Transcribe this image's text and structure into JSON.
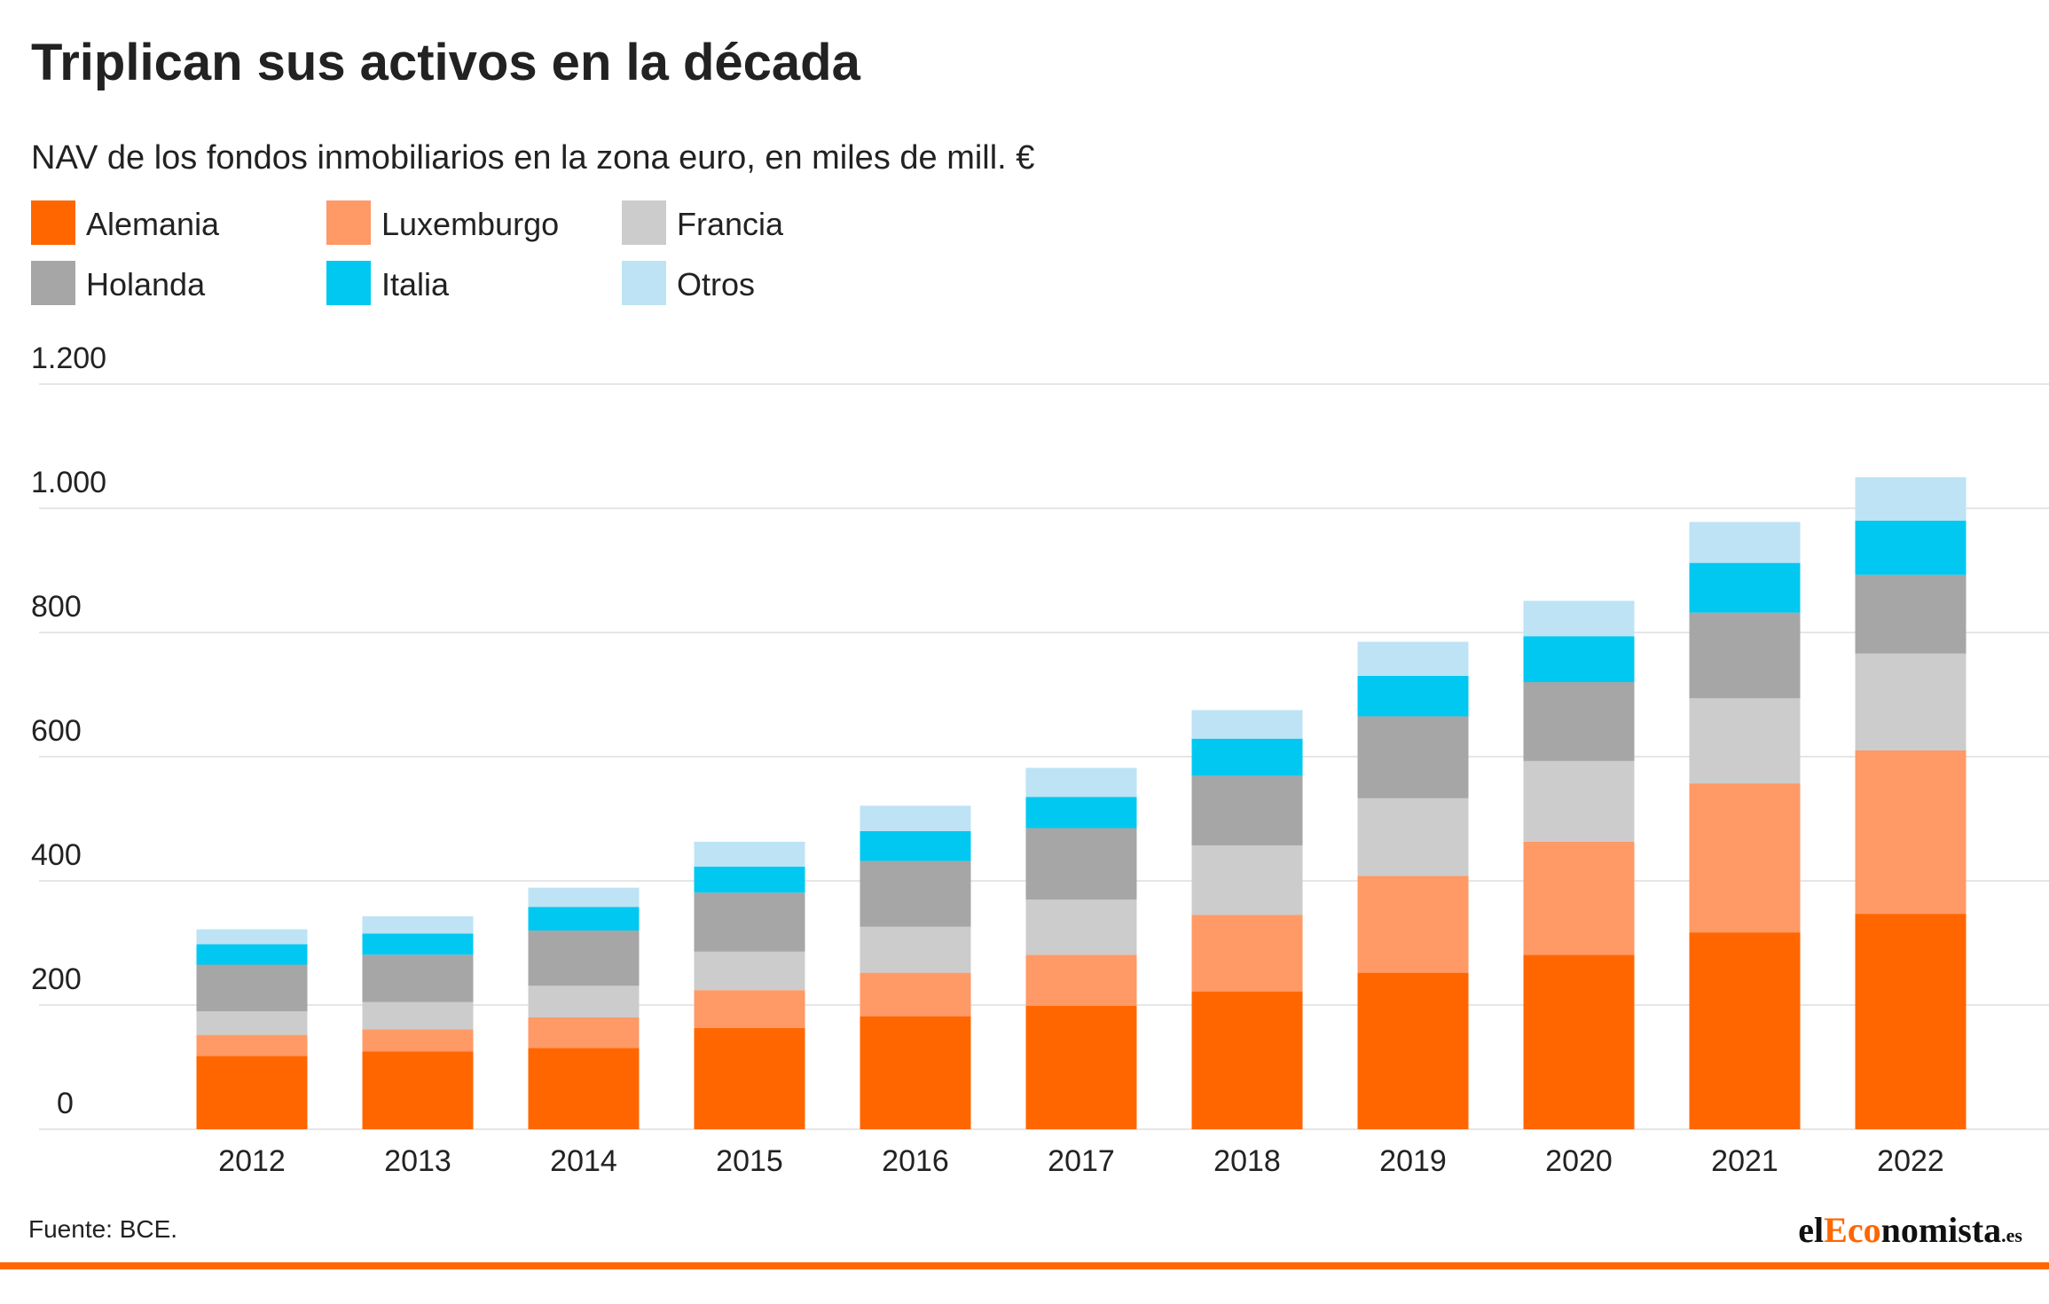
{
  "chart_data": {
    "type": "stacked-bar",
    "title": "Triplican sus activos en la década",
    "subtitle": "NAV de los fondos inmobiliarios en la zona euro, en miles de mill. €",
    "source": "Fuente: BCE.",
    "categories": [
      "2012",
      "2013",
      "2014",
      "2015",
      "2016",
      "2017",
      "2018",
      "2019",
      "2020",
      "2021",
      "2022"
    ],
    "series": [
      {
        "name": "Alemania",
        "color": "#ff6600",
        "values": [
          118,
          125,
          131,
          163,
          182,
          199,
          222,
          252,
          281,
          317,
          347
        ]
      },
      {
        "name": "Luxemburgo",
        "color": "#ff9966",
        "values": [
          34,
          36,
          49,
          61,
          70,
          82,
          123,
          156,
          182,
          240,
          263
        ]
      },
      {
        "name": "Francia",
        "color": "#cccccc",
        "values": [
          38,
          44,
          51,
          62,
          74,
          89,
          112,
          125,
          130,
          137,
          156
        ]
      },
      {
        "name": "Holanda",
        "color": "#a6a6a6",
        "values": [
          75,
          76,
          89,
          95,
          106,
          115,
          112,
          132,
          127,
          138,
          127
        ]
      },
      {
        "name": "Italia",
        "color": "#00c8f0",
        "values": [
          33,
          34,
          38,
          42,
          48,
          50,
          60,
          65,
          74,
          80,
          87
        ]
      },
      {
        "name": "Otros",
        "color": "#bde3f5",
        "values": [
          24,
          28,
          31,
          40,
          41,
          47,
          46,
          55,
          57,
          66,
          70
        ]
      }
    ],
    "ylim": [
      0,
      1200
    ],
    "yticks": [
      0,
      200,
      400,
      600,
      800,
      {
        "value": 1000,
        "label": "1.000"
      },
      {
        "value": 1200,
        "label": "1.200"
      }
    ],
    "grid": true
  },
  "logo": [
    "el",
    "Eco",
    "nomista",
    ".es"
  ]
}
